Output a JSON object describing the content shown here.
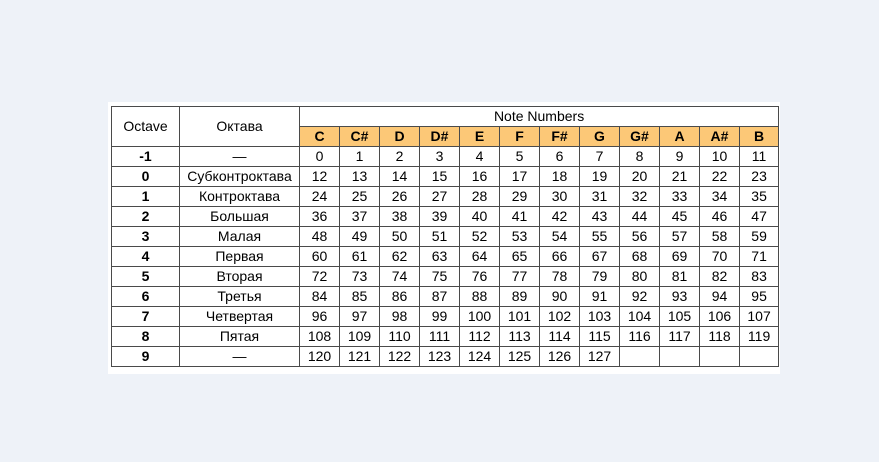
{
  "table": {
    "octave_header": "Octave",
    "name_header": "Октава",
    "group_header": "Note Numbers",
    "notes": [
      "C",
      "C#",
      "D",
      "D#",
      "E",
      "F",
      "F#",
      "G",
      "G#",
      "A",
      "A#",
      "B"
    ],
    "rows": [
      {
        "octave": "-1",
        "name": "—",
        "values": [
          "0",
          "1",
          "2",
          "3",
          "4",
          "5",
          "6",
          "7",
          "8",
          "9",
          "10",
          "11"
        ]
      },
      {
        "octave": "0",
        "name": "Субконтроктава",
        "values": [
          "12",
          "13",
          "14",
          "15",
          "16",
          "17",
          "18",
          "19",
          "20",
          "21",
          "22",
          "23"
        ]
      },
      {
        "octave": "1",
        "name": "Контроктава",
        "values": [
          "24",
          "25",
          "26",
          "27",
          "28",
          "29",
          "30",
          "31",
          "32",
          "33",
          "34",
          "35"
        ]
      },
      {
        "octave": "2",
        "name": "Большая",
        "values": [
          "36",
          "37",
          "38",
          "39",
          "40",
          "41",
          "42",
          "43",
          "44",
          "45",
          "46",
          "47"
        ]
      },
      {
        "octave": "3",
        "name": "Малая",
        "values": [
          "48",
          "49",
          "50",
          "51",
          "52",
          "53",
          "54",
          "55",
          "56",
          "57",
          "58",
          "59"
        ]
      },
      {
        "octave": "4",
        "name": "Первая",
        "values": [
          "60",
          "61",
          "62",
          "63",
          "64",
          "65",
          "66",
          "67",
          "68",
          "69",
          "70",
          "71"
        ]
      },
      {
        "octave": "5",
        "name": "Вторая",
        "values": [
          "72",
          "73",
          "74",
          "75",
          "76",
          "77",
          "78",
          "79",
          "80",
          "81",
          "82",
          "83"
        ]
      },
      {
        "octave": "6",
        "name": "Третья",
        "values": [
          "84",
          "85",
          "86",
          "87",
          "88",
          "89",
          "90",
          "91",
          "92",
          "93",
          "94",
          "95"
        ]
      },
      {
        "octave": "7",
        "name": "Четвертая",
        "values": [
          "96",
          "97",
          "98",
          "99",
          "100",
          "101",
          "102",
          "103",
          "104",
          "105",
          "106",
          "107"
        ]
      },
      {
        "octave": "8",
        "name": "Пятая",
        "values": [
          "108",
          "109",
          "110",
          "111",
          "112",
          "113",
          "114",
          "115",
          "116",
          "117",
          "118",
          "119"
        ]
      },
      {
        "octave": "9",
        "name": "—",
        "values": [
          "120",
          "121",
          "122",
          "123",
          "124",
          "125",
          "126",
          "127",
          "",
          "",
          "",
          ""
        ]
      }
    ]
  },
  "colors": {
    "note_header_bg": "#fcc877",
    "page_bg": "#eef2f8",
    "border": "#4a4a4a"
  }
}
